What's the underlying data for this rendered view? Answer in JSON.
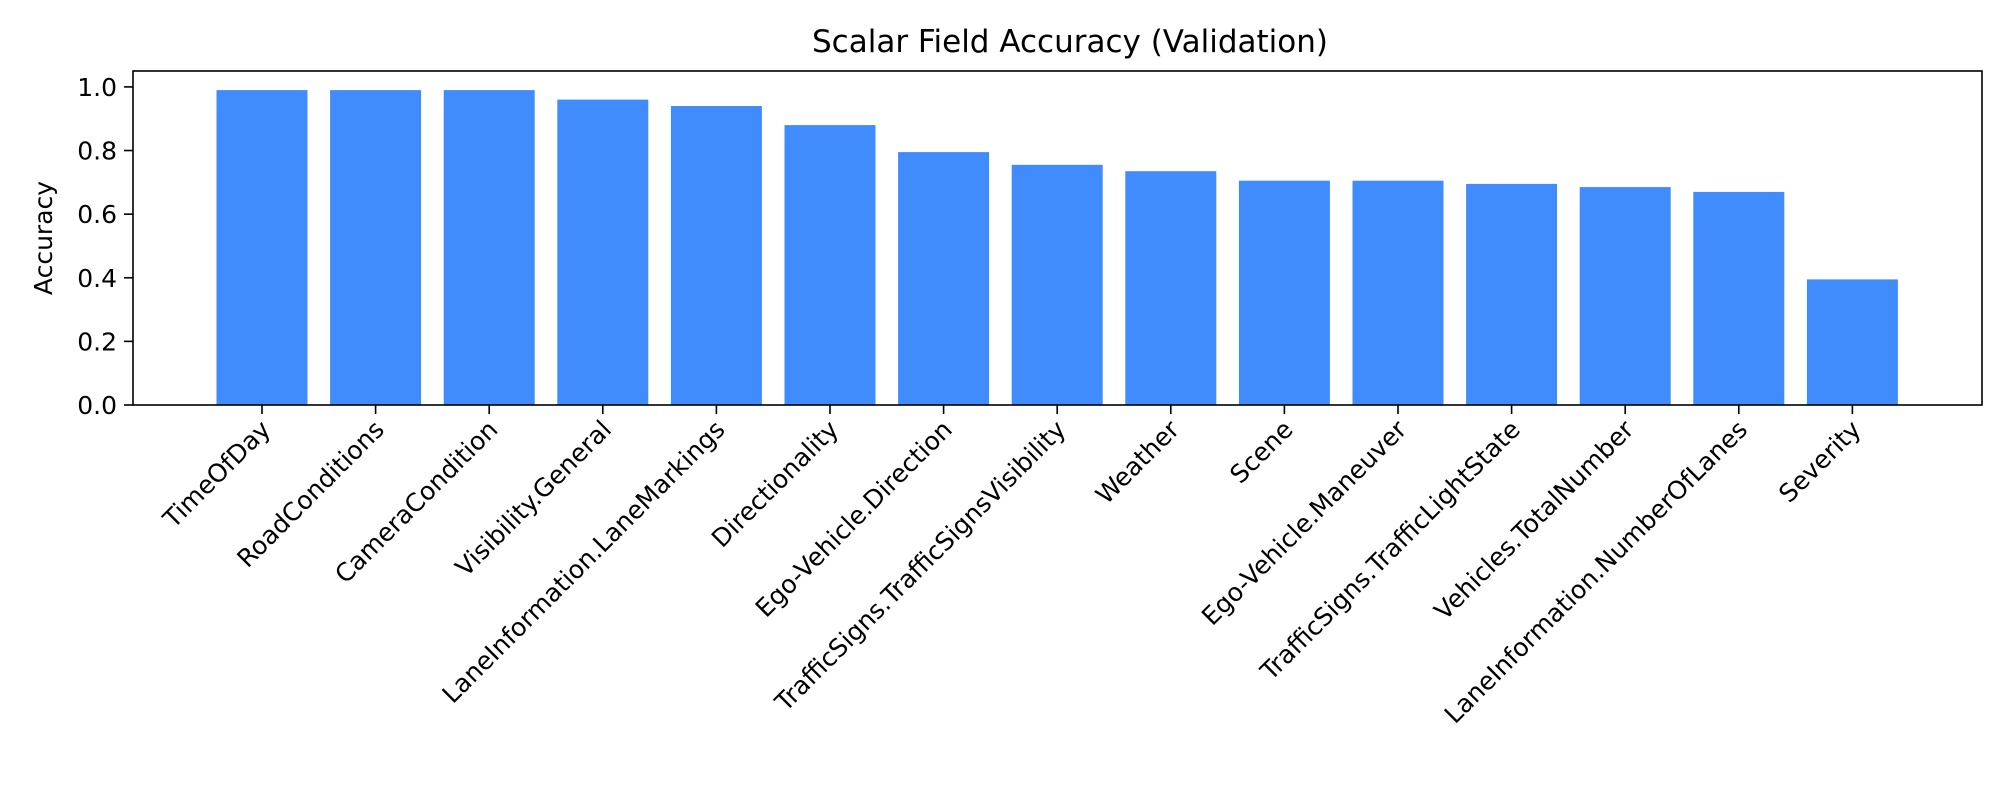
{
  "chart_data": {
    "type": "bar",
    "title": "Scalar Field Accuracy (Validation)",
    "xlabel": "",
    "ylabel": "Accuracy",
    "categories": [
      "TimeOfDay",
      "RoadConditions",
      "CameraCondition",
      "Visibility.General",
      "LaneInformation.LaneMarkings",
      "Directionality",
      "Ego-Vehicle.Direction",
      "TrafficSigns.TrafficSignsVisibility",
      "Weather",
      "Scene",
      "Ego-Vehicle.Maneuver",
      "TrafficSigns.TrafficLightState",
      "Vehicles.TotalNumber",
      "LaneInformation.NumberOfLanes",
      "Severity"
    ],
    "values": [
      0.99,
      0.99,
      0.99,
      0.96,
      0.94,
      0.88,
      0.795,
      0.755,
      0.735,
      0.705,
      0.705,
      0.695,
      0.685,
      0.67,
      0.395
    ],
    "ylim": [
      0,
      1.05
    ],
    "yticks": [
      "0.0",
      "0.2",
      "0.4",
      "0.6",
      "0.8",
      "1.0"
    ],
    "grid": false,
    "bar_color": "#418CFC"
  }
}
